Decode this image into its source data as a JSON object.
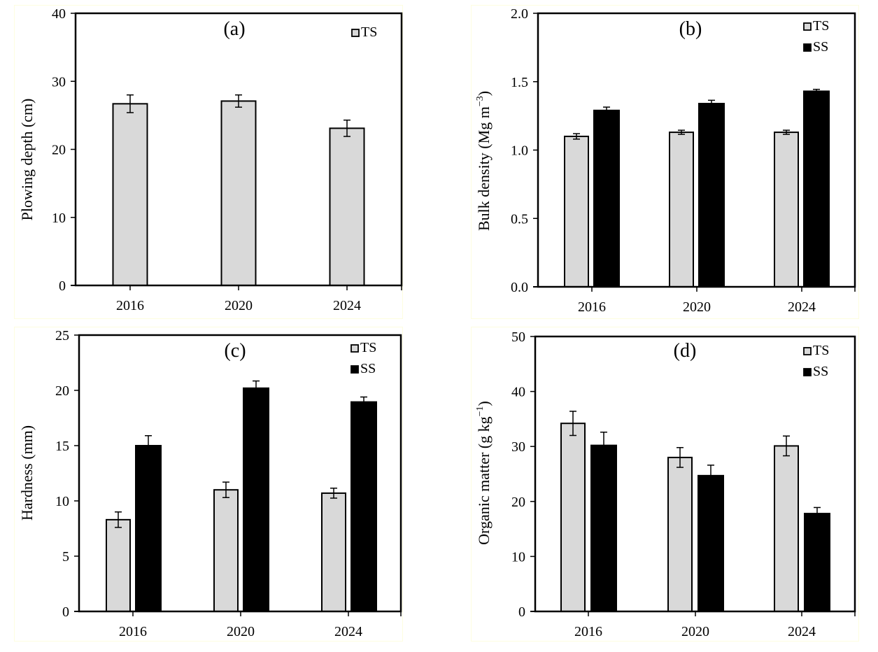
{
  "figure": {
    "colors": {
      "TS": "#d9d9d9",
      "SS": "#000000",
      "axis": "#000000",
      "frame": "#fdfde0"
    }
  },
  "chart_data": [
    {
      "id": "a",
      "type": "bar",
      "panel_label": "(a)",
      "title": "",
      "xlabel": "",
      "ylabel": "Plowing depth (cm)",
      "categories": [
        "2016",
        "2020",
        "2024"
      ],
      "ylim": [
        0,
        40
      ],
      "yticks": [
        0,
        10,
        20,
        30,
        40
      ],
      "ytick_labels": [
        "0",
        "10",
        "20",
        "30",
        "40"
      ],
      "grid": false,
      "legend": {
        "position": "top-right",
        "entries": [
          "TS"
        ]
      },
      "series": [
        {
          "name": "TS",
          "values": [
            26.7,
            27.1,
            23.1
          ],
          "errors": [
            1.3,
            0.9,
            1.2
          ]
        }
      ]
    },
    {
      "id": "b",
      "type": "bar",
      "panel_label": "(b)",
      "title": "",
      "xlabel": "",
      "ylabel": "Bulk density (Mg m",
      "ylabel_sup": "−3",
      "ylabel_end": ")",
      "categories": [
        "2016",
        "2020",
        "2024"
      ],
      "ylim": [
        0,
        2.0
      ],
      "yticks": [
        0,
        0.5,
        1.0,
        1.5,
        2.0
      ],
      "ytick_labels": [
        "0.0",
        "0.5",
        "1.0",
        "1.5",
        "2.0"
      ],
      "grid": false,
      "legend": {
        "position": "top-right",
        "entries": [
          "TS",
          "SS"
        ]
      },
      "series": [
        {
          "name": "TS",
          "values": [
            1.1,
            1.13,
            1.13
          ],
          "errors": [
            0.02,
            0.015,
            0.015
          ]
        },
        {
          "name": "SS",
          "values": [
            1.29,
            1.34,
            1.43
          ],
          "errors": [
            0.024,
            0.024,
            0.014
          ]
        }
      ]
    },
    {
      "id": "c",
      "type": "bar",
      "panel_label": "(c)",
      "title": "",
      "xlabel": "",
      "ylabel": "Hardness (mm)",
      "categories": [
        "2016",
        "2020",
        "2024"
      ],
      "ylim": [
        0,
        25
      ],
      "yticks": [
        0,
        5,
        10,
        15,
        20,
        25
      ],
      "ytick_labels": [
        "0",
        "5",
        "10",
        "15",
        "20",
        "25"
      ],
      "grid": false,
      "legend": {
        "position": "top-right",
        "entries": [
          "TS",
          "SS"
        ]
      },
      "series": [
        {
          "name": "TS",
          "values": [
            8.3,
            11.0,
            10.7
          ],
          "errors": [
            0.7,
            0.7,
            0.45
          ]
        },
        {
          "name": "SS",
          "values": [
            15.0,
            20.2,
            18.95
          ],
          "errors": [
            0.9,
            0.65,
            0.45
          ]
        }
      ]
    },
    {
      "id": "d",
      "type": "bar",
      "panel_label": "(d)",
      "title": "",
      "xlabel": "",
      "ylabel": "Organic matter (g kg",
      "ylabel_sup": "−1",
      "ylabel_end": ")",
      "categories": [
        "2016",
        "2020",
        "2024"
      ],
      "ylim": [
        0,
        50
      ],
      "yticks": [
        0,
        10,
        20,
        30,
        40,
        50
      ],
      "ytick_labels": [
        "0",
        "10",
        "20",
        "30",
        "40",
        "50"
      ],
      "grid": false,
      "legend": {
        "position": "top-right",
        "entries": [
          "TS",
          "SS"
        ]
      },
      "series": [
        {
          "name": "TS",
          "values": [
            34.2,
            28.0,
            30.1
          ],
          "errors": [
            2.2,
            1.8,
            1.8
          ]
        },
        {
          "name": "SS",
          "values": [
            30.2,
            24.7,
            17.8
          ],
          "errors": [
            2.4,
            1.9,
            1.1
          ]
        }
      ]
    }
  ]
}
